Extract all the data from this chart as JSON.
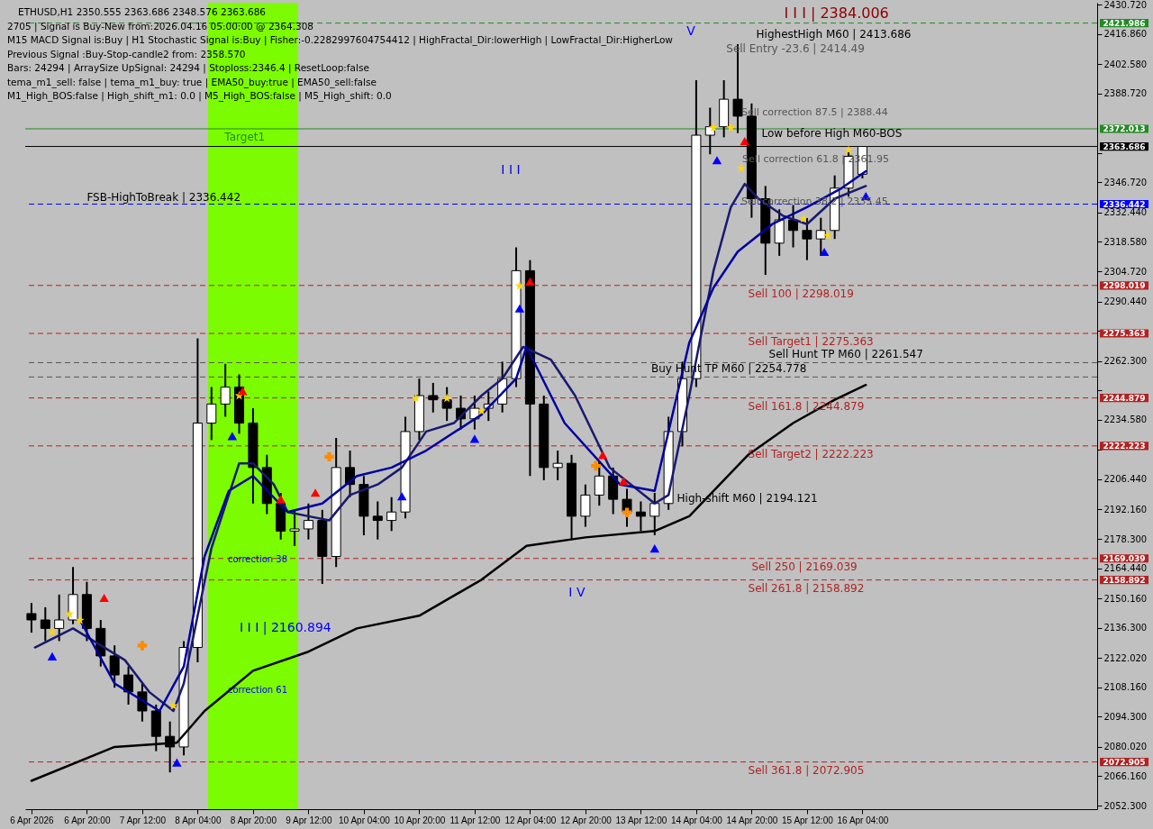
{
  "chart_data": {
    "type": "candlestick",
    "title": "ETHUSD,H1  2350.555 2363.686 2348.576 2363.686",
    "x": [
      "2026-04-06T04:00",
      "2026-04-06T08:00",
      "2026-04-06T12:00",
      "2026-04-06T16:00",
      "2026-04-06T20:00",
      "2026-04-07T00:00",
      "2026-04-07T04:00",
      "2026-04-07T08:00",
      "2026-04-07T12:00",
      "2026-04-07T16:00",
      "2026-04-07T20:00",
      "2026-04-08T00:00",
      "2026-04-08T04:00",
      "2026-04-08T08:00",
      "2026-04-08T12:00",
      "2026-04-08T16:00",
      "2026-04-08T20:00",
      "2026-04-09T00:00",
      "2026-04-09T04:00",
      "2026-04-09T08:00",
      "2026-04-09T12:00",
      "2026-04-09T16:00",
      "2026-04-09T20:00",
      "2026-04-10T00:00",
      "2026-04-10T04:00",
      "2026-04-10T08:00",
      "2026-04-10T12:00",
      "2026-04-10T16:00",
      "2026-04-10T20:00",
      "2026-04-11T00:00",
      "2026-04-11T04:00",
      "2026-04-11T08:00",
      "2026-04-11T12:00",
      "2026-04-11T16:00",
      "2026-04-11T20:00",
      "2026-04-12T00:00",
      "2026-04-12T04:00",
      "2026-04-12T08:00",
      "2026-04-12T12:00",
      "2026-04-12T16:00",
      "2026-04-12T20:00",
      "2026-04-13T00:00",
      "2026-04-13T04:00",
      "2026-04-13T08:00",
      "2026-04-13T12:00",
      "2026-04-13T16:00",
      "2026-04-13T20:00",
      "2026-04-14T00:00",
      "2026-04-14T04:00",
      "2026-04-14T08:00",
      "2026-04-14T12:00",
      "2026-04-14T16:00",
      "2026-04-14T20:00",
      "2026-04-15T00:00",
      "2026-04-15T04:00",
      "2026-04-15T08:00",
      "2026-04-15T12:00",
      "2026-04-15T16:00",
      "2026-04-15T20:00",
      "2026-04-16T00:00",
      "2026-04-16T04:00"
    ],
    "ohlc": [
      [
        2143,
        2148,
        2134,
        2140
      ],
      [
        2140,
        2146,
        2130,
        2136
      ],
      [
        2136,
        2152,
        2130,
        2140
      ],
      [
        2140,
        2165,
        2138,
        2152
      ],
      [
        2152,
        2158,
        2130,
        2136
      ],
      [
        2136,
        2140,
        2118,
        2123
      ],
      [
        2123,
        2128,
        2108,
        2114
      ],
      [
        2114,
        2118,
        2100,
        2106
      ],
      [
        2106,
        2110,
        2092,
        2097
      ],
      [
        2097,
        2100,
        2078,
        2085
      ],
      [
        2085,
        2092,
        2068,
        2080
      ],
      [
        2080,
        2130,
        2076,
        2127
      ],
      [
        2127,
        2273,
        2120,
        2233
      ],
      [
        2233,
        2250,
        2225,
        2242
      ],
      [
        2242,
        2261,
        2236,
        2250
      ],
      [
        2250,
        2256,
        2228,
        2233
      ],
      [
        2233,
        2240,
        2195,
        2212
      ],
      [
        2212,
        2218,
        2190,
        2195
      ],
      [
        2195,
        2200,
        2178,
        2182
      ],
      [
        2182,
        2192,
        2175,
        2183
      ],
      [
        2183,
        2195,
        2178,
        2187
      ],
      [
        2187,
        2192,
        2157,
        2170
      ],
      [
        2170,
        2226,
        2165,
        2212
      ],
      [
        2212,
        2220,
        2198,
        2204
      ],
      [
        2204,
        2208,
        2180,
        2189
      ],
      [
        2189,
        2196,
        2178,
        2187
      ],
      [
        2187,
        2198,
        2182,
        2191
      ],
      [
        2191,
        2236,
        2188,
        2229
      ],
      [
        2229,
        2254,
        2225,
        2246
      ],
      [
        2246,
        2252,
        2238,
        2244
      ],
      [
        2244,
        2250,
        2234,
        2240
      ],
      [
        2240,
        2246,
        2230,
        2235
      ],
      [
        2235,
        2246,
        2230,
        2240
      ],
      [
        2240,
        2248,
        2234,
        2242
      ],
      [
        2242,
        2262,
        2238,
        2254
      ],
      [
        2254,
        2316,
        2250,
        2305
      ],
      [
        2305,
        2310,
        2208,
        2242
      ],
      [
        2242,
        2246,
        2206,
        2212
      ],
      [
        2212,
        2220,
        2206,
        2214
      ],
      [
        2214,
        2218,
        2178,
        2189
      ],
      [
        2189,
        2204,
        2184,
        2199
      ],
      [
        2199,
        2215,
        2194,
        2208
      ],
      [
        2208,
        2212,
        2190,
        2197
      ],
      [
        2197,
        2202,
        2184,
        2191
      ],
      [
        2191,
        2196,
        2182,
        2189
      ],
      [
        2189,
        2200,
        2180,
        2195
      ],
      [
        2195,
        2236,
        2192,
        2229
      ],
      [
        2229,
        2262,
        2222,
        2254
      ],
      [
        2254,
        2395,
        2250,
        2369
      ],
      [
        2369,
        2382,
        2360,
        2373
      ],
      [
        2373,
        2395,
        2368,
        2386
      ],
      [
        2386,
        2412,
        2370,
        2378
      ],
      [
        2378,
        2384,
        2330,
        2339
      ],
      [
        2339,
        2345,
        2303,
        2318
      ],
      [
        2318,
        2334,
        2312,
        2329
      ],
      [
        2329,
        2336,
        2316,
        2324
      ],
      [
        2324,
        2330,
        2310,
        2320
      ],
      [
        2320,
        2330,
        2312,
        2324
      ],
      [
        2324,
        2350,
        2320,
        2344
      ],
      [
        2344,
        2362,
        2340,
        2359
      ],
      [
        2350.555,
        2363.686,
        2348.576,
        2363.686
      ]
    ],
    "series": [
      {
        "type": "line",
        "color": "#000000",
        "x": [
          "2026-04-06T04:00",
          "2026-04-07T04:00",
          "2026-04-07T22:00",
          "2026-04-08T06:00",
          "2026-04-08T20:00",
          "2026-04-09T12:00",
          "2026-04-10T02:00",
          "2026-04-10T20:00",
          "2026-04-11T14:00",
          "2026-04-12T03:00",
          "2026-04-12T20:00",
          "2026-04-13T16:00",
          "2026-04-14T02:00",
          "2026-04-14T19:00",
          "2026-04-15T08:00",
          "2026-04-15T20:00",
          "2026-04-16T05:00"
        ],
        "values": [
          2064,
          2080,
          2082,
          2097,
          2116,
          2125,
          2136,
          2142,
          2159,
          2175,
          2179,
          2182,
          2189,
          2218,
          2233,
          2244,
          2251
        ]
      },
      {
        "type": "line",
        "color": "#191970",
        "x": [
          "2026-04-06T05:00",
          "2026-04-06T16:00",
          "2026-04-07T07:00",
          "2026-04-07T14:00",
          "2026-04-07T21:00",
          "2026-04-08T00:00",
          "2026-04-08T08:00",
          "2026-04-08T16:00",
          "2026-04-08T20:00",
          "2026-04-09T02:00",
          "2026-04-09T06:00",
          "2026-04-09T12:00",
          "2026-04-09T18:00",
          "2026-04-10T00:00",
          "2026-04-10T08:00",
          "2026-04-10T15:00",
          "2026-04-10T22:00",
          "2026-04-11T06:00",
          "2026-04-11T14:00",
          "2026-04-11T20:00",
          "2026-04-12T02:00",
          "2026-04-12T10:00",
          "2026-04-12T17:00",
          "2026-04-13T03:00",
          "2026-04-13T16:00",
          "2026-04-13T20:00",
          "2026-04-14T02:00",
          "2026-04-14T09:00",
          "2026-04-14T14:00",
          "2026-04-14T18:00",
          "2026-04-14T22:00",
          "2026-04-15T05:00",
          "2026-04-15T12:00",
          "2026-04-15T20:00",
          "2026-04-16T05:00"
        ],
        "values": [
          2127,
          2136,
          2121,
          2106,
          2097,
          2110,
          2174,
          2214,
          2214,
          2204,
          2191,
          2189,
          2187,
          2199,
          2204,
          2212,
          2229,
          2233,
          2246,
          2254,
          2269,
          2263,
          2246,
          2212,
          2195,
          2199,
          2246,
          2305,
          2335,
          2346,
          2339,
          2331,
          2327,
          2339,
          2345
        ]
      },
      {
        "type": "line",
        "color": "#0000a0",
        "x": [
          "2026-04-06T18:00",
          "2026-04-07T04:00",
          "2026-04-07T17:00",
          "2026-04-08T00:00",
          "2026-04-08T06:00",
          "2026-04-08T13:00",
          "2026-04-08T20:00",
          "2026-04-09T06:00",
          "2026-04-09T16:00",
          "2026-04-10T02:00",
          "2026-04-10T12:00",
          "2026-04-10T22:00",
          "2026-04-11T14:00",
          "2026-04-12T00:00",
          "2026-04-12T03:00",
          "2026-04-12T14:00",
          "2026-04-13T06:00",
          "2026-04-13T16:00",
          "2026-04-14T02:00",
          "2026-04-14T09:00",
          "2026-04-14T16:00",
          "2026-04-15T02:00",
          "2026-04-15T12:00",
          "2026-04-15T22:00",
          "2026-04-16T05:00"
        ],
        "values": [
          2140,
          2110,
          2097,
          2118,
          2170,
          2201,
          2208,
          2191,
          2195,
          2208,
          2212,
          2220,
          2237,
          2254,
          2269,
          2233,
          2204,
          2201,
          2271,
          2297,
          2314,
          2327,
          2335,
          2344,
          2352
        ]
      },
      {
        "type": "scatter",
        "color": "#ffd700",
        "marker": "star",
        "x": [
          "2026-04-06T10:00",
          "2026-04-06T15:00",
          "2026-04-06T18:00",
          "2026-04-07T21:00",
          "2026-04-08T16:00",
          "2026-04-10T19:00",
          "2026-04-11T04:00",
          "2026-04-11T14:00",
          "2026-04-12T01:00",
          "2026-04-14T09:00",
          "2026-04-14T14:00",
          "2026-04-14T17:00",
          "2026-04-15T11:00",
          "2026-04-15T18:00",
          "2026-04-16T00:00"
        ],
        "values": [
          2134.3,
          2142.8,
          2139.8,
          2099.5,
          2245.9,
          2244.7,
          2244.7,
          2238.7,
          2297.8,
          2372.5,
          2372.5,
          2353.4,
          2329.6,
          2321.6,
          2361.9
        ]
      },
      {
        "type": "scatter",
        "color": "#0000ff",
        "marker": "triangle",
        "x": [
          "2026-04-06T10:00",
          "2026-04-07T22:00",
          "2026-04-08T14:00",
          "2026-04-10T15:00",
          "2026-04-11T12:00",
          "2026-04-12T01:00",
          "2026-04-13T16:00",
          "2026-04-14T10:00",
          "2026-04-15T17:00",
          "2026-04-16T05:00"
        ],
        "values": [
          2122.8,
          2072.7,
          2226.9,
          2198.4,
          2225.6,
          2287.2,
          2173.8,
          2357.2,
          2313.9,
          2340.3
        ]
      },
      {
        "type": "scatter",
        "color": "#ff0000",
        "marker": "triangle",
        "x": [
          "2026-04-07T01:00",
          "2026-04-08T17:00",
          "2026-04-09T04:00",
          "2026-04-09T14:00",
          "2026-04-12T04:00",
          "2026-04-13T01:00",
          "2026-04-13T07:00",
          "2026-04-14T18:00"
        ],
        "values": [
          2150.4,
          2248.1,
          2197.1,
          2200.1,
          2299.9,
          2217.9,
          2205.6,
          2366.2
        ]
      },
      {
        "type": "scatter",
        "color": "#ff8c00",
        "marker": "cross",
        "x": [
          "2026-04-07T12:00",
          "2026-04-09T18:00",
          "2026-04-12T23:00",
          "2026-04-13T08:00"
        ],
        "values": [
          2127.9,
          2217.1,
          2212.8,
          2190.8
        ]
      }
    ],
    "xlim": [
      "2026-04-06T03:30",
      "2026-04-18T22:30"
    ],
    "xticks": [
      {
        "value": "2026-04-06T04:00",
        "label": "6 Apr 2026"
      },
      {
        "value": "2026-04-06T20:00",
        "label": "6 Apr 20:00"
      },
      {
        "value": "2026-04-07T12:00",
        "label": "7 Apr 12:00"
      },
      {
        "value": "2026-04-08T04:00",
        "label": "8 Apr 04:00"
      },
      {
        "value": "2026-04-08T20:00",
        "label": "8 Apr 20:00"
      },
      {
        "value": "2026-04-09T12:00",
        "label": "9 Apr 12:00"
      },
      {
        "value": "2026-04-10T04:00",
        "label": "10 Apr 04:00"
      },
      {
        "value": "2026-04-10T20:00",
        "label": "10 Apr 20:00"
      },
      {
        "value": "2026-04-11T12:00",
        "label": "11 Apr 12:00"
      },
      {
        "value": "2026-04-12T04:00",
        "label": "12 Apr 04:00"
      },
      {
        "value": "2026-04-12T20:00",
        "label": "12 Apr 20:00"
      },
      {
        "value": "2026-04-13T12:00",
        "label": "13 Apr 12:00"
      },
      {
        "value": "2026-04-14T04:00",
        "label": "14 Apr 04:00"
      },
      {
        "value": "2026-04-14T20:00",
        "label": "14 Apr 20:00"
      },
      {
        "value": "2026-04-15T12:00",
        "label": "15 Apr 12:00"
      },
      {
        "value": "2026-04-16T04:00",
        "label": "16 Apr 04:00"
      }
    ],
    "ylim": [
      2050.6,
      2431.6
    ],
    "yticks": [
      {
        "value": 2430.72,
        "label": "2430.720"
      },
      {
        "value": 2416.86,
        "label": "2416.860"
      },
      {
        "value": 2402.58,
        "label": "2402.580"
      },
      {
        "value": 2388.72,
        "label": "2388.720"
      },
      {
        "value": 2360.58,
        "label": null
      },
      {
        "value": 2346.72,
        "label": "2346.720"
      },
      {
        "value": 2332.44,
        "label": "2332.440"
      },
      {
        "value": 2318.58,
        "label": "2318.580"
      },
      {
        "value": 2304.72,
        "label": "2304.720"
      },
      {
        "value": 2290.44,
        "label": "2290.440"
      },
      {
        "value": 2276.58,
        "label": null
      },
      {
        "value": 2262.3,
        "label": "2262.300"
      },
      {
        "value": 2248.44,
        "label": null
      },
      {
        "value": 2234.58,
        "label": "2234.580"
      },
      {
        "value": 2220.3,
        "label": null
      },
      {
        "value": 2206.44,
        "label": "2206.440"
      },
      {
        "value": 2192.16,
        "label": "2192.160"
      },
      {
        "value": 2178.3,
        "label": "2178.300"
      },
      {
        "value": 2164.44,
        "label": "2164.440"
      },
      {
        "value": 2150.16,
        "label": "2150.160"
      },
      {
        "value": 2136.3,
        "label": "2136.300"
      },
      {
        "value": 2122.02,
        "label": "2122.020"
      },
      {
        "value": 2108.16,
        "label": "2108.160"
      },
      {
        "value": 2094.3,
        "label": "2094.300"
      },
      {
        "value": 2080.02,
        "label": "2080.020"
      },
      {
        "value": 2066.16,
        "label": "2066.160"
      },
      {
        "value": 2052.3,
        "label": "2052.300"
      }
    ],
    "bands": [
      {
        "axis": "x",
        "from": "2026-04-08T07:00",
        "to": "2026-04-09T09:00",
        "color": "#7cfc00"
      }
    ],
    "ref_lines": [
      {
        "axis": "y",
        "value": 2421.986,
        "label": "2421.986",
        "color": "#228b22",
        "line_style": "dashed"
      },
      {
        "axis": "y",
        "value": 2372.013,
        "label": "2372.013",
        "color": "#228b22",
        "line_style": "solid"
      },
      {
        "axis": "y",
        "value": 2363.686,
        "label": "2363.686",
        "color": "#000000",
        "line_style": "solid"
      },
      {
        "axis": "y",
        "value": 2336.442,
        "label": "2336.442",
        "color": "#0000ff",
        "line_style": "dashed"
      },
      {
        "axis": "y",
        "value": 2298.019,
        "label": "2298.019",
        "color": "#b22222",
        "line_style": "dashed"
      },
      {
        "axis": "y",
        "value": 2275.363,
        "label": "2275.363",
        "color": "#b22222",
        "line_style": "dashed"
      },
      {
        "axis": "y",
        "value": 2261.547,
        "color": "#555555",
        "line_style": "dashed"
      },
      {
        "axis": "y",
        "value": 2254.778,
        "color": "#555555",
        "line_style": "dashed"
      },
      {
        "axis": "y",
        "value": 2244.879,
        "label": "2244.879",
        "color": "#b22222",
        "line_style": "dashed"
      },
      {
        "axis": "y",
        "value": 2222.223,
        "label": "2222.223",
        "color": "#b22222",
        "line_style": "dashed"
      },
      {
        "axis": "y",
        "value": 2169.039,
        "label": "2169.039",
        "color": "#b22222",
        "line_style": "dashed"
      },
      {
        "axis": "y",
        "value": 2158.892,
        "label": "2158.892",
        "color": "#b22222",
        "line_style": "dashed"
      },
      {
        "axis": "y",
        "value": 2072.905,
        "label": "2072.905",
        "color": "#b22222",
        "line_style": "dashed"
      }
    ],
    "annotations": [
      "2705 | Signal is Buy-New from:2026.04.16 05:00:00 @ 2364.308",
      "M15 MACD Signal is:Buy | H1 Stochastic Signal is:Buy | Fisher:-0.2282997604754412 | HighFractal_Dir:lowerHigh | LowFractal_Dir:HigherLow",
      "Previous Signal :Buy-Stop-candle2 from: 2358.570",
      "Bars: 24294 | ArraySize UpSignal: 24294 | Stoploss:2346.4 | ResetLoop:false",
      "tema_m1_sell: false | tema_m1_buy: true | EMA50_buy:true | EMA50_sell:false",
      "M1_High_BOS:false | High_shift_m1: 0.0 | M5_High_BOS:false | M5_High_shift: 0.0",
      {
        "text": "FSB-HighToBreak | 2336.442",
        "x": "2026-04-06T20:00",
        "y": 2336.442
      },
      {
        "text": "Sell 100 | 2298.019",
        "x": "2026-04-14T19:00",
        "y": 2298.019
      },
      {
        "text": "Sell Target1 | 2275.363",
        "x": "2026-04-14T19:00",
        "y": 2275.363
      },
      {
        "text": "Sell Hunt TP M60 | 2261.547",
        "x": "2026-04-15T01:00",
        "y": 2261.547
      },
      {
        "text": "Buy Hunt TP M60 | 2254.778",
        "x": "2026-04-13T15:00",
        "y": 2254.778
      },
      {
        "text": "Sell 161.8 | 2244.879",
        "x": "2026-04-14T19:00",
        "y": 2244.879
      },
      {
        "text": "Sell Target2 | 2222.223",
        "x": "2026-04-14T19:00",
        "y": 2222.223
      },
      {
        "text": "Sell 250 | 2169.039",
        "x": "2026-04-14T20:00",
        "y": 2169.039
      },
      {
        "text": "Sell 261.8 | 2158.892",
        "x": "2026-04-14T19:00",
        "y": 2158.892
      },
      {
        "text": "Sell 361.8 | 2072.905",
        "x": "2026-04-14T19:00",
        "y": 2072.905
      },
      "Target1",
      "I I I | 2384.006",
      "I I I | 2160.894",
      "correction 38",
      "correction 61",
      "V",
      "I V",
      "I I I",
      "HighestHigh   M60 | 2413.686",
      "Sell Entry -23.6 | 2414.49",
      "Sell correction 87.5 | 2388.44",
      "Low before High   M60-BOS",
      "Sell correction 61.8 | 2361.95",
      "Sell correction 38.2 | 2335.45",
      "High-shift M60 | 2194.121"
    ]
  }
}
